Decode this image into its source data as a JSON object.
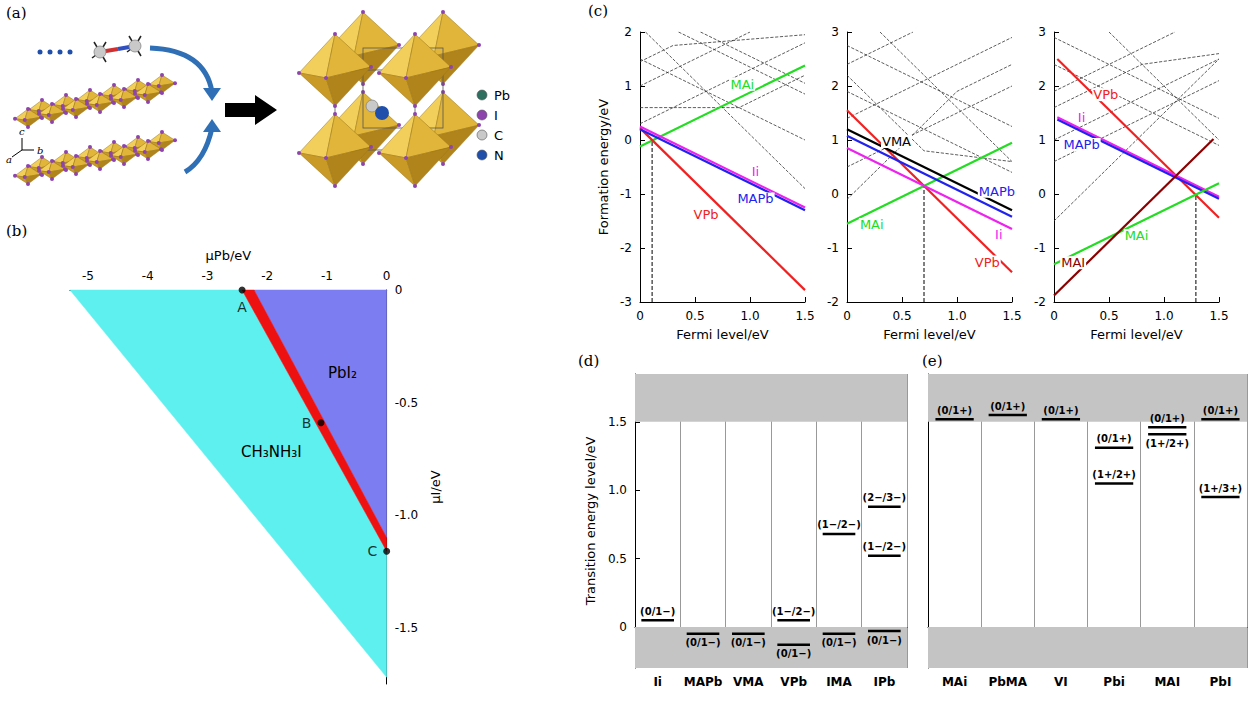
{
  "chart_data": [
    {
      "type": "diagram",
      "title": "(a)",
      "species": [
        {
          "label": "Pb",
          "color": "#2f6f5f"
        },
        {
          "label": "I",
          "color": "#8e44ad"
        },
        {
          "label": "C",
          "color": "#c9c9c9"
        },
        {
          "label": "N",
          "color": "#1f4faa"
        }
      ],
      "axis_labels": [
        "c",
        "a",
        "b"
      ]
    },
    {
      "type": "area",
      "title": "(b)",
      "xlabel": "μPb/eV",
      "ylabel": "μI/eV",
      "xlim": [
        -5.3,
        0
      ],
      "xticks": [
        -5,
        -4,
        -3,
        -2,
        -1,
        0
      ],
      "ylim": [
        -1.75,
        0
      ],
      "yticks": [
        -1.5,
        {
          "value": -1,
          "label": "-1.0"
        },
        -0.5,
        0
      ],
      "regions": [
        {
          "label": "CH₃NH₃I",
          "color": "#5ef0ef",
          "vertices": [
            [
              -5.3,
              0
            ],
            [
              -2.42,
              0
            ],
            [
              0,
              -1.16
            ],
            [
              0,
              -1.72
            ]
          ]
        },
        {
          "label": "PbI₂",
          "color": "#7d7df2",
          "vertices": [
            [
              -2.22,
              0
            ],
            [
              0,
              0
            ],
            [
              0,
              -1.1
            ]
          ]
        },
        {
          "color": "#ee1111",
          "vertices": [
            [
              -2.42,
              0
            ],
            [
              -2.22,
              0
            ],
            [
              0,
              -1.1
            ],
            [
              0,
              -1.16
            ]
          ]
        }
      ],
      "points": [
        {
          "label": "A",
          "x": -2.42,
          "y": 0
        },
        {
          "label": "B",
          "x": -1.1,
          "y": -0.59
        },
        {
          "label": "C",
          "x": 0,
          "y": -1.16
        }
      ]
    },
    {
      "type": "line",
      "title": "(c)",
      "xlabel": "Fermi level/eV",
      "ylabel": "Formation energy/eV",
      "xlim": [
        0,
        1.5
      ],
      "xticks": [
        0,
        0.5,
        {
          "value": 1,
          "label": "1.0"
        },
        1.5
      ],
      "subplots": [
        {
          "ylim": [
            -3,
            2
          ],
          "yticks": [
            -3,
            -2,
            -1,
            0,
            1,
            2
          ],
          "pinned": {
            "x": 0.11,
            "y": -0.01
          },
          "series": [
            {
              "name": "MAi",
              "color": "#22dd22",
              "values": [
                [
                  0,
                  -0.12
                ],
                [
                  1.5,
                  1.38
                ]
              ]
            },
            {
              "name": "VPb",
              "color": "#ee2222",
              "values": [
                [
                  0,
                  0.22
                ],
                [
                  1.5,
                  -2.78
                ]
              ]
            },
            {
              "name": "Ii",
              "color": "#ee22ee",
              "values": [
                [
                  0,
                  0.25
                ],
                [
                  1.5,
                  -1.25
                ]
              ]
            },
            {
              "name": "MAPb",
              "color": "#2222ee",
              "values": [
                [
                  0,
                  0.2
                ],
                [
                  1.5,
                  -1.3
                ]
              ]
            }
          ],
          "other_lines": {
            "color": "#333333",
            "line_style": "dashed",
            "lines": [
              [
                [
                  0,
                  1.45
                ],
                [
                  0.3,
                  1.75
                ],
                [
                  1.5,
                  1.95
                ]
              ],
              [
                [
                  0,
                  1.5
                ],
                [
                  1.5,
                  0.0
                ]
              ],
              [
                [
                  0.05,
                  2.0
                ],
                [
                  1.5,
                  -0.9
                ]
              ],
              [
                [
                  0,
                  0.3
                ],
                [
                  1.5,
                  1.8
                ]
              ],
              [
                [
                  0,
                  1.0
                ],
                [
                  1.0,
                  2.0
                ]
              ],
              [
                [
                  0.35,
                  2.0
                ],
                [
                  1.5,
                  0.85
                ]
              ],
              [
                [
                  0.55,
                  2.0
                ],
                [
                  1.5,
                  1.05
                ]
              ],
              [
                [
                  0,
                  0.6
                ],
                [
                  0.9,
                  0.6
                ],
                [
                  1.5,
                  1.2
                ]
              ]
            ]
          }
        },
        {
          "ylim": [
            -2,
            3
          ],
          "yticks": [
            -2,
            -1,
            0,
            1,
            2,
            3
          ],
          "pinned": {
            "x": 0.7,
            "y": 0.15
          },
          "series": [
            {
              "name": "MAi",
              "color": "#22dd22",
              "values": [
                [
                  0,
                  -0.55
                ],
                [
                  1.5,
                  0.95
                ]
              ]
            },
            {
              "name": "VPb",
              "color": "#ee2222",
              "values": [
                [
                  0,
                  1.55
                ],
                [
                  1.5,
                  -1.45
                ]
              ]
            },
            {
              "name": "VMA",
              "color": "#000000",
              "values": [
                [
                  0,
                  1.2
                ],
                [
                  1.5,
                  -0.3
                ]
              ]
            },
            {
              "name": "MAPb",
              "color": "#2222ee",
              "values": [
                [
                  0,
                  1.08
                ],
                [
                  1.5,
                  -0.42
                ]
              ]
            },
            {
              "name": "Ii",
              "color": "#ee22ee",
              "values": [
                [
                  0,
                  0.85
                ],
                [
                  1.5,
                  -0.65
                ]
              ]
            }
          ],
          "other_lines": {
            "color": "#333333",
            "line_style": "dashed",
            "lines": [
              [
                [
                  0,
                  2.4
                ],
                [
                  0.6,
                  3.0
                ]
              ],
              [
                [
                  0,
                  2.75
                ],
                [
                  1.5,
                  1.25
                ]
              ],
              [
                [
                  0,
                  1.9
                ],
                [
                  1.5,
                  0.4
                ]
              ],
              [
                [
                  0,
                  -0.1
                ],
                [
                  1.0,
                  1.9
                ],
                [
                  1.5,
                  2.4
                ]
              ],
              [
                [
                  0,
                  0.5
                ],
                [
                  1.5,
                  2.0
                ]
              ],
              [
                [
                  0,
                  2.2
                ],
                [
                  0.7,
                  0.8
                ],
                [
                  1.5,
                  0.6
                ]
              ],
              [
                [
                  0.3,
                  3.0
                ],
                [
                  1.5,
                  0.6
                ]
              ],
              [
                [
                  0,
                  1.4
                ],
                [
                  1.5,
                  2.9
                ]
              ]
            ]
          }
        },
        {
          "ylim": [
            -2,
            3
          ],
          "yticks": [
            -2,
            -1,
            0,
            1,
            2,
            3
          ],
          "pinned": {
            "x": 1.29,
            "y": -0.01
          },
          "series": [
            {
              "name": "VPb",
              "color": "#ee2222",
              "values": [
                [
                  0.03,
                  2.5
                ],
                [
                  1.5,
                  -0.44
                ]
              ]
            },
            {
              "name": "Ii",
              "color": "#ee22ee",
              "values": [
                [
                  0.03,
                  1.42
                ],
                [
                  1.5,
                  -0.05
                ]
              ]
            },
            {
              "name": "MAPb",
              "color": "#2222ee",
              "values": [
                [
                  0.03,
                  1.38
                ],
                [
                  1.5,
                  -0.09
                ]
              ]
            },
            {
              "name": "MAi",
              "color": "#22dd22",
              "values": [
                [
                  0,
                  -1.3
                ],
                [
                  1.5,
                  0.2
                ]
              ]
            },
            {
              "name": "MAI",
              "color": "#8b0000",
              "values": [
                [
                  0,
                  -1.88
                ],
                [
                  1.45,
                  1.02
                ]
              ]
            }
          ],
          "other_lines": {
            "color": "#333333",
            "line_style": "dashed",
            "lines": [
              [
                [
                  0,
                  2.9
                ],
                [
                  1.5,
                  1.4
                ]
              ],
              [
                [
                  0,
                  1.9
                ],
                [
                  1.1,
                  3.0
                ]
              ],
              [
                [
                  0,
                  0.6
                ],
                [
                  1.5,
                  2.1
                ]
              ],
              [
                [
                  0,
                  1.0
                ],
                [
                  1.5,
                  2.5
                ]
              ],
              [
                [
                  0,
                  2.4
                ],
                [
                  1.5,
                  0.9
                ]
              ],
              [
                [
                  0,
                  -0.5
                ],
                [
                  1.5,
                  2.5
                ]
              ],
              [
                [
                  0.5,
                  3.0
                ],
                [
                  1.5,
                  1.0
                ]
              ],
              [
                [
                  0,
                  1.6
                ],
                [
                  0.8,
                  2.4
                ],
                [
                  1.5,
                  2.6
                ]
              ]
            ]
          }
        }
      ]
    },
    {
      "type": "level_diagram",
      "title": "(d)",
      "ylabel": "Transition energy level/eV",
      "categories": [
        "Ii",
        "MAPb",
        "VMA",
        "VPb",
        "IMA",
        "IPb"
      ],
      "ylim": [
        -0.3,
        1.85
      ],
      "yticks": [
        0,
        0.5,
        {
          "value": 1,
          "label": "1.0"
        },
        1.5
      ],
      "band_edges": [
        0,
        1.5
      ],
      "levels": [
        [
          {
            "label": "(0/1−)",
            "value": 0.05
          }
        ],
        [
          {
            "label": "(0/1−)",
            "value": -0.05
          }
        ],
        [
          {
            "label": "(0/1−)",
            "value": -0.05
          }
        ],
        [
          {
            "label": "(1−/2−)",
            "value": 0.05
          },
          {
            "label": "(0/1−)",
            "value": -0.13
          }
        ],
        [
          {
            "label": "(1−/2−)",
            "value": 0.68
          },
          {
            "label": "(0/1−)",
            "value": -0.05
          }
        ],
        [
          {
            "label": "(2−/3−)",
            "value": 0.88
          },
          {
            "label": "(1−/2−)",
            "value": 0.52
          },
          {
            "label": "(0/1−)",
            "value": -0.03
          }
        ]
      ]
    },
    {
      "type": "level_diagram",
      "title": "(e)",
      "tick_labels": "x",
      "categories": [
        "MAi",
        "PbMA",
        "VI",
        "Pbi",
        "MAI",
        "PbI"
      ],
      "ylim": [
        -0.3,
        1.85
      ],
      "band_edges": [
        0,
        1.5
      ],
      "levels": [
        [
          {
            "label": "(0/1+)",
            "value": 1.52
          }
        ],
        [
          {
            "label": "(0/1+)",
            "value": 1.55
          }
        ],
        [
          {
            "label": "(0/1+)",
            "value": 1.52
          }
        ],
        [
          {
            "label": "(0/1+)",
            "value": 1.31
          },
          {
            "label": "(1+/2+)",
            "value": 1.05
          }
        ],
        [
          {
            "label": "(0/1+)",
            "value": 1.46
          },
          {
            "label": "(1+/2+)",
            "value": 1.41
          }
        ],
        [
          {
            "label": "(0/1+)",
            "value": 1.52
          },
          {
            "label": "(1+/3+)",
            "value": 0.95
          }
        ]
      ]
    }
  ]
}
